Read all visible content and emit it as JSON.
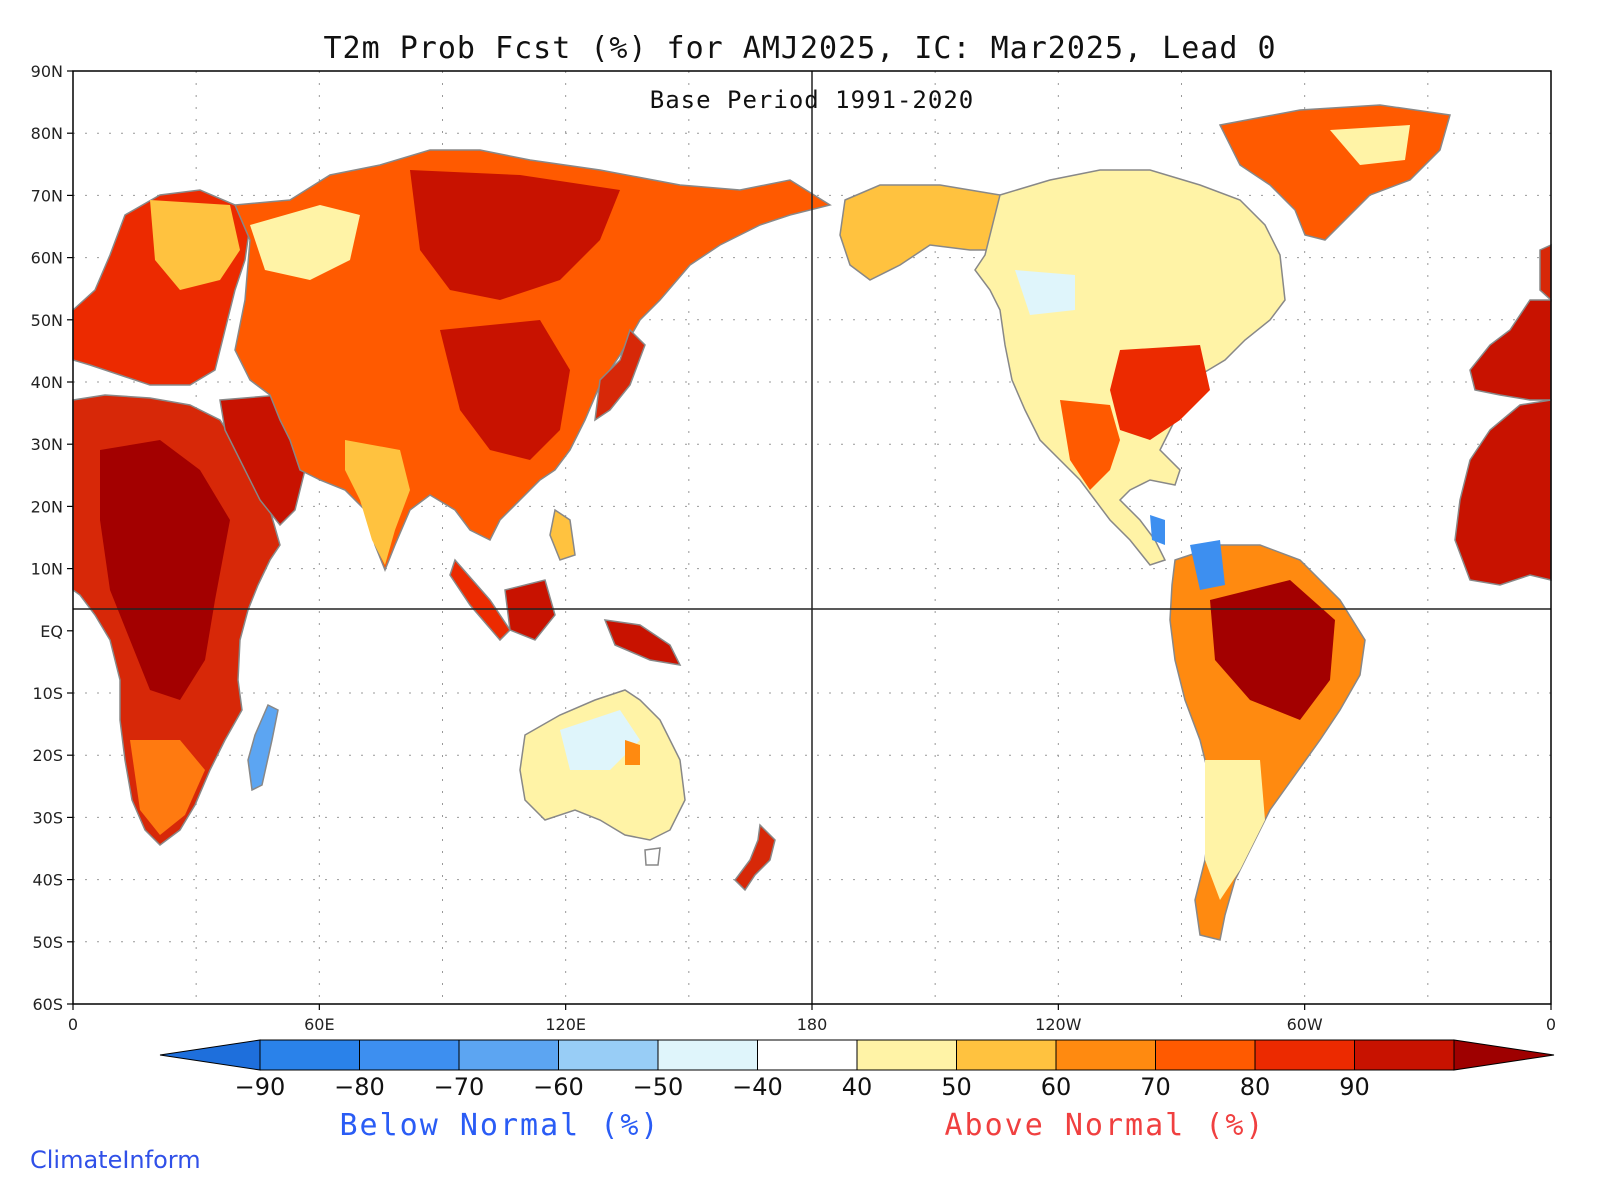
{
  "title": "T2m Prob Fcst (%) for AMJ2025, IC: Mar2025, Lead 0",
  "subtitle": "Base Period 1991-2020",
  "lat_labels": [
    "90N",
    "80N",
    "70N",
    "60N",
    "50N",
    "40N",
    "30N",
    "20N",
    "10N",
    "EQ",
    "10S",
    "20S",
    "30S",
    "40S",
    "50S",
    "60S"
  ],
  "lon_labels": [
    "0",
    "60E",
    "120E",
    "180",
    "120W",
    "60W",
    "0"
  ],
  "colorbar": {
    "ticks": [
      "-90",
      "-80",
      "-70",
      "-60",
      "-50",
      "-40",
      "40",
      "50",
      "60",
      "70",
      "80",
      "90"
    ],
    "colors": [
      "#1e6fdc",
      "#2a82ea",
      "#3d8ff0",
      "#5ca5f2",
      "#98cdf6",
      "#dff5fb",
      "#ffffff",
      "#fff3a6",
      "#ffc23f",
      "#ff8a10",
      "#ff5a00",
      "#ec2a00",
      "#c81200",
      "#9e0000"
    ]
  },
  "below_label": "Below Normal (%)",
  "above_label": "Above Normal (%)",
  "credit": "ClimateInform",
  "colors": {
    "below_text": "#2a5cf5",
    "above_text": "#f04040",
    "credit_text": "#3050e8",
    "land_outline": "#888888",
    "ocean": "#ffffff"
  },
  "chart_data": {
    "type": "heatmap",
    "title": "T2m Prob Fcst (%) for AMJ2025, IC: Mar2025, Lead 0",
    "subtitle": "Base Period 1991-2020",
    "projection": "cylindrical equidistant, centered on 180",
    "lon_range": [
      0,
      360
    ],
    "lat_range": [
      -60,
      90
    ],
    "variable": "2m temperature tercile probability (%)",
    "levels": [
      -90,
      -80,
      -70,
      -60,
      -50,
      -40,
      40,
      50,
      60,
      70,
      80,
      90
    ],
    "regions": [
      {
        "name": "Europe",
        "category": "above",
        "prob": "60-90"
      },
      {
        "name": "Russia/Siberia",
        "category": "above",
        "prob": "60-90"
      },
      {
        "name": "China",
        "category": "above",
        "prob": "60-90"
      },
      {
        "name": "India",
        "category": "above",
        "prob": "40-80"
      },
      {
        "name": "Middle East",
        "category": "above",
        "prob": "70-90"
      },
      {
        "name": "Africa",
        "category": "above",
        "prob": "60-90"
      },
      {
        "name": "Maritime Continent",
        "category": "above",
        "prob": "70-90"
      },
      {
        "name": "Australia",
        "category": "near-normal",
        "prob": "-50 to 60"
      },
      {
        "name": "New Zealand",
        "category": "above",
        "prob": "70-90"
      },
      {
        "name": "Madagascar",
        "category": "below",
        "prob": "-50 to -70"
      },
      {
        "name": "Alaska",
        "category": "above",
        "prob": "50-70"
      },
      {
        "name": "Canada",
        "category": "near-normal",
        "prob": "-50 to 60"
      },
      {
        "name": "Eastern US",
        "category": "above",
        "prob": "60-90"
      },
      {
        "name": "Western US",
        "category": "above",
        "prob": "40-60"
      },
      {
        "name": "Mexico",
        "category": "above",
        "prob": "60-80"
      },
      {
        "name": "Central America",
        "category": "below",
        "prob": "-60 to -70"
      },
      {
        "name": "Colombia",
        "category": "below",
        "prob": "-60 to -70"
      },
      {
        "name": "Brazil/Amazon",
        "category": "above",
        "prob": "70-90"
      },
      {
        "name": "Southern South America",
        "category": "near-normal",
        "prob": "40-60"
      },
      {
        "name": "Greenland",
        "category": "above",
        "prob": "50-90"
      }
    ]
  }
}
